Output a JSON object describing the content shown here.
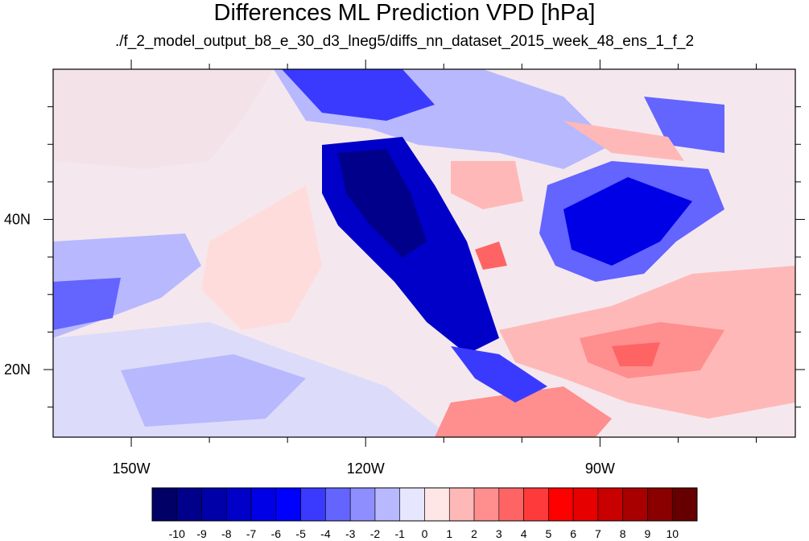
{
  "title": "Differences ML Prediction VPD [hPa]",
  "subtitle": "./f_2_model_output_b8_e_30_d3_lneg5/diffs_nn_dataset_2015_week_48_ens_1_f_2",
  "map": {
    "lon_range": [
      -160,
      -65
    ],
    "lat_range": [
      11,
      60
    ],
    "x_ticks": [
      {
        "value": -150,
        "label": "150W"
      },
      {
        "value": -120,
        "label": "120W"
      },
      {
        "value": -90,
        "label": "90W"
      }
    ],
    "y_ticks": [
      {
        "value": 40,
        "label": "40N"
      },
      {
        "value": 20,
        "label": "20N"
      }
    ]
  },
  "colorbar": {
    "labels": [
      "-10",
      "-9",
      "-8",
      "-7",
      "-6",
      "-5",
      "-4",
      "-3",
      "-2",
      "-1",
      "0",
      "1",
      "2",
      "3",
      "4",
      "5",
      "6",
      "7",
      "8",
      "9",
      "10"
    ],
    "colors": [
      "#000066",
      "#00008a",
      "#0000a8",
      "#0000c8",
      "#0000e6",
      "#0000ff",
      "#3a3aff",
      "#6464ff",
      "#8e8eff",
      "#b8b8ff",
      "#e6e6ff",
      "#ffe6e6",
      "#ffb8b8",
      "#ff8e8e",
      "#ff6464",
      "#ff3a3a",
      "#ff0000",
      "#e60000",
      "#c80000",
      "#a80000",
      "#8a0000",
      "#660000"
    ]
  }
}
